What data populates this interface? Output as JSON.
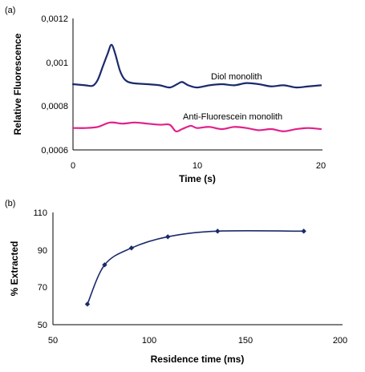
{
  "chart_data": [
    {
      "type": "line",
      "panel_label": "(a)",
      "xlabel": "Time (s)",
      "ylabel": "Relative Fluorescence",
      "xlim": [
        0,
        20
      ],
      "ylim": [
        0.0006,
        0.0012
      ],
      "x_ticks": [
        "0",
        "10",
        "20"
      ],
      "y_ticks": [
        "0,0006",
        "0,0008",
        "0,001",
        "0,0012"
      ],
      "series": [
        {
          "name": "Diol monolith",
          "color": "#1a2a6c",
          "x": [
            0,
            1,
            1.6,
            2.0,
            2.4,
            2.8,
            3.1,
            3.4,
            3.8,
            4.2,
            4.8,
            6,
            7,
            7.8,
            8.4,
            8.8,
            9.3,
            10,
            11,
            12,
            13,
            14,
            15,
            16,
            17,
            18,
            19,
            20
          ],
          "y": [
            0.0009,
            0.000895,
            0.000893,
            0.00092,
            0.00098,
            0.00104,
            0.00108,
            0.00104,
            0.00096,
            0.00092,
            0.000905,
            0.0009,
            0.000895,
            0.000885,
            0.0009,
            0.00091,
            0.000895,
            0.000885,
            0.000895,
            0.0009,
            0.000895,
            0.000905,
            0.0009,
            0.00089,
            0.000895,
            0.000885,
            0.00089,
            0.000895
          ]
        },
        {
          "name": "Anti-Fluorescein monolith",
          "color": "#e0218a",
          "x": [
            0,
            1,
            2,
            3,
            4,
            5,
            6,
            7,
            7.8,
            8.3,
            8.8,
            9.5,
            10,
            11,
            12,
            13,
            14,
            15,
            16,
            17,
            18,
            19,
            20
          ],
          "y": [
            0.0007,
            0.0007,
            0.000705,
            0.000725,
            0.00072,
            0.000725,
            0.00072,
            0.000715,
            0.000715,
            0.000685,
            0.000695,
            0.00071,
            0.0007,
            0.000705,
            0.000695,
            0.000705,
            0.0007,
            0.00069,
            0.000695,
            0.000685,
            0.000695,
            0.0007,
            0.000695
          ]
        }
      ]
    },
    {
      "type": "line",
      "panel_label": "(b)",
      "xlabel": "Residence time (ms)",
      "ylabel": "% Extracted",
      "xlim": [
        50,
        200
      ],
      "ylim": [
        50,
        110
      ],
      "x_ticks": [
        "50",
        "100",
        "150",
        "200"
      ],
      "y_ticks": [
        "50",
        "70",
        "90",
        "110"
      ],
      "series": [
        {
          "color": "#1a2a6c",
          "x": [
            68,
            77,
            91,
            110,
            136,
            181
          ],
          "y": [
            61,
            82,
            91,
            97,
            100,
            100
          ]
        }
      ]
    }
  ]
}
